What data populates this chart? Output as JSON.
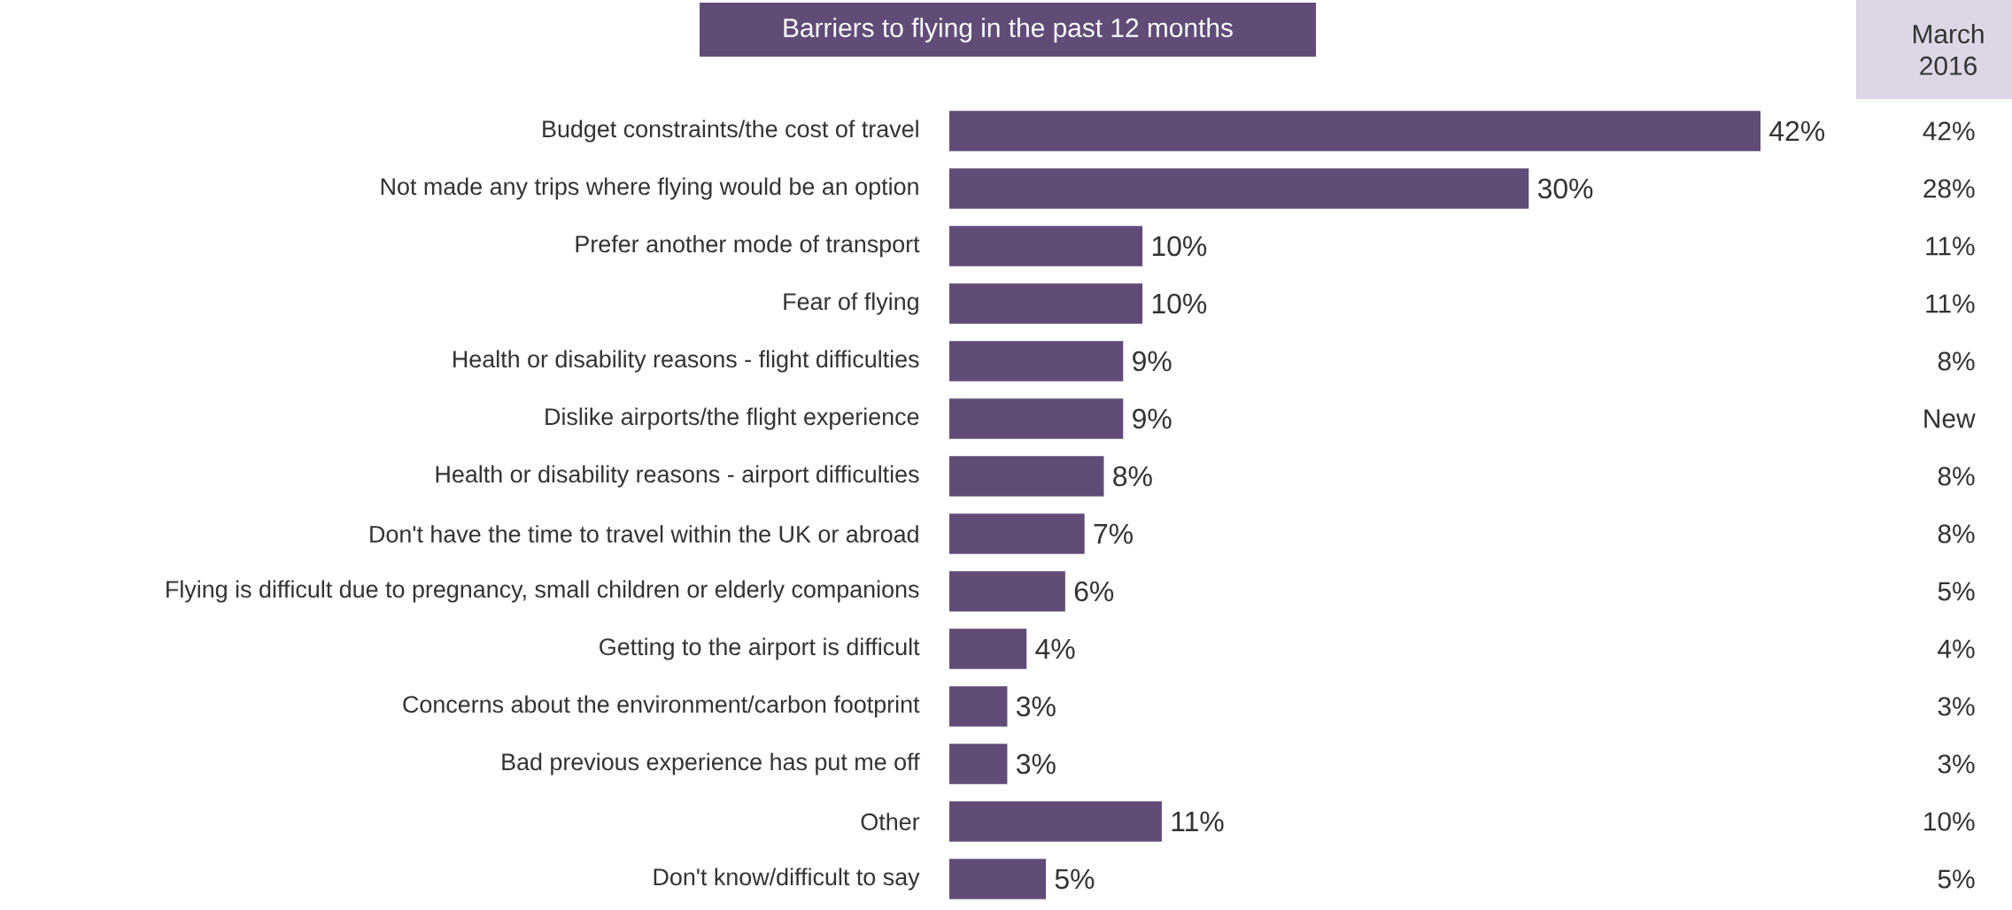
{
  "chart_data": {
    "type": "bar",
    "orientation": "horizontal",
    "title": "Barriers to flying in the past 12 months",
    "categories": [
      "Budget constraints/the cost of travel",
      "Not made any trips where flying would be an  option",
      "Prefer another mode of transport",
      "Fear of flying",
      "Health or disability reasons - flight difficulties",
      "Dislike airports/the flight experience",
      "Health or disability reasons - airport difficulties",
      "Don't have the time to travel within the UK or abroad",
      "Flying is difficult due to pregnancy, small children or elderly companions",
      "Getting to the airport is difficult",
      "Concerns about the environment/carbon footprint",
      "Bad previous experience has put me off",
      "Other",
      "Don't know/difficult to say"
    ],
    "values": [
      42,
      30,
      10,
      10,
      9,
      9,
      8,
      7,
      6,
      4,
      3,
      3,
      11,
      5
    ],
    "value_labels": [
      "42%",
      "30%",
      "10%",
      "10%",
      "9%",
      "9%",
      "8%",
      "7%",
      "6%",
      "4%",
      "3%",
      "3%",
      "11%",
      "5%"
    ],
    "color": "#614c77",
    "annotations": [
      "March 2016",
      "42%",
      "28%",
      "11%",
      "11%",
      "8%",
      "New",
      "8%",
      "8%",
      "5%",
      "4%",
      "3%",
      "3%",
      "10%",
      "5%"
    ]
  }
}
